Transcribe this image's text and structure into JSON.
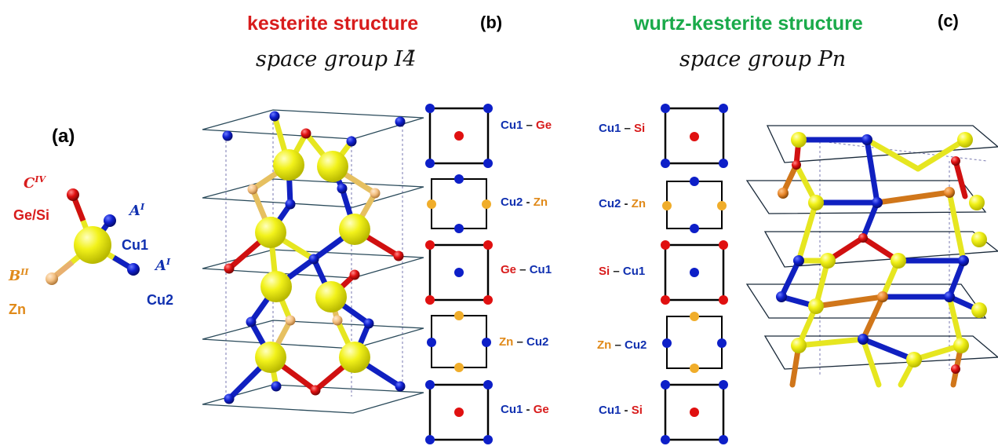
{
  "titles": {
    "b": "kesterite structure",
    "c": "wurtz-kesterite structure",
    "b_space_group": "space group I4̄",
    "c_space_group": "space group Pn"
  },
  "panel_labels": {
    "a": "(a)",
    "b": "(b)",
    "c": "(c)"
  },
  "panel_a": {
    "site_c": "C",
    "site_c_sup": "IV",
    "site_a1": "A",
    "site_a1_sup": "I",
    "site_a2": "A",
    "site_a2_sup": "I",
    "site_b": "B",
    "site_b_sup": "II",
    "ge_si": "Ge/Si",
    "cu1": "Cu1",
    "cu2": "Cu2",
    "zn": "Zn"
  },
  "kesterite_layers": [
    {
      "left": "Cu1",
      "sep": " – ",
      "right": "Ge"
    },
    {
      "left": "Cu2",
      "sep": " - ",
      "right": "Zn"
    },
    {
      "left": "Ge",
      "sep": " – ",
      "right": "Cu1"
    },
    {
      "left": "Zn",
      "sep": " – ",
      "right": "Cu2"
    },
    {
      "left": "Cu1",
      "sep": " - ",
      "right": "Ge"
    }
  ],
  "wurtz_layers": [
    {
      "left": "Cu1",
      "sep": " – ",
      "right": "Si"
    },
    {
      "left": "Cu2",
      "sep": " - ",
      "right": "Zn"
    },
    {
      "left": "Si",
      "sep": " – ",
      "right": "Cu1"
    },
    {
      "left": "Zn",
      "sep": " – ",
      "right": "Cu2"
    },
    {
      "left": "Cu1",
      "sep": " - ",
      "right": "Si"
    }
  ],
  "colors": {
    "cu": "#0d1fc8",
    "ge_si": "#e01010",
    "zn": "#f0ad2a",
    "zn_light": "#f5c88a",
    "s": "#eeee10",
    "title_b": "#ee1111",
    "title_c": "#1aaa4a"
  }
}
